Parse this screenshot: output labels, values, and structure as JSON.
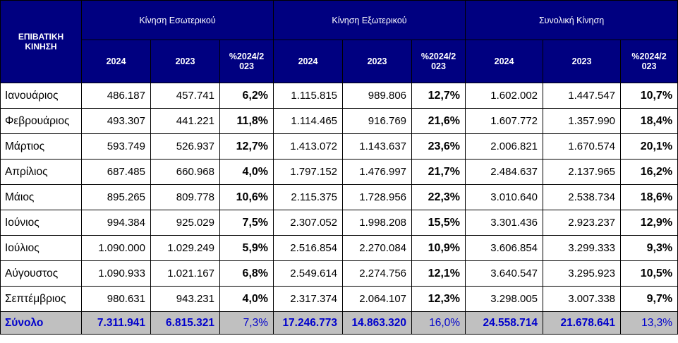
{
  "header": {
    "corner_label": "ΕΠΙΒΑΤΙΚΗ ΚΙΝΗΣΗ",
    "groups": [
      "Κίνηση Εσωτερικού",
      "Κίνηση Εξωτερικού",
      "Συνολική Κίνηση"
    ],
    "subcols": [
      "2024",
      "2023",
      "%2024/2023"
    ]
  },
  "rows": [
    {
      "month": "Ιανουάριος",
      "cells": [
        "486.187",
        "457.741",
        "6,2%",
        "1.115.815",
        "989.806",
        "12,7%",
        "1.602.002",
        "1.447.547",
        "10,7%"
      ]
    },
    {
      "month": "Φεβρουάριος",
      "cells": [
        "493.307",
        "441.221",
        "11,8%",
        "1.114.465",
        "916.769",
        "21,6%",
        "1.607.772",
        "1.357.990",
        "18,4%"
      ]
    },
    {
      "month": "Μάρτιος",
      "cells": [
        "593.749",
        "526.937",
        "12,7%",
        "1.413.072",
        "1.143.637",
        "23,6%",
        "2.006.821",
        "1.670.574",
        "20,1%"
      ]
    },
    {
      "month": "Απρίλιος",
      "cells": [
        "687.485",
        "660.968",
        "4,0%",
        "1.797.152",
        "1.476.997",
        "21,7%",
        "2.484.637",
        "2.137.965",
        "16,2%"
      ]
    },
    {
      "month": "Μάιος",
      "cells": [
        "895.265",
        "809.778",
        "10,6%",
        "2.115.375",
        "1.728.956",
        "22,3%",
        "3.010.640",
        "2.538.734",
        "18,6%"
      ]
    },
    {
      "month": "Ιούνιος",
      "cells": [
        "994.384",
        "925.029",
        "7,5%",
        "2.307.052",
        "1.998.208",
        "15,5%",
        "3.301.436",
        "2.923.237",
        "12,9%"
      ]
    },
    {
      "month": "Ιούλιος",
      "cells": [
        "1.090.000",
        "1.029.249",
        "5,9%",
        "2.516.854",
        "2.270.084",
        "10,9%",
        "3.606.854",
        "3.299.333",
        "9,3%"
      ]
    },
    {
      "month": "Αύγουστος",
      "cells": [
        "1.090.933",
        "1.021.167",
        "6,8%",
        "2.549.614",
        "2.274.756",
        "12,1%",
        "3.640.547",
        "3.295.923",
        "10,5%"
      ]
    },
    {
      "month": "Σεπτέμβριος",
      "cells": [
        "980.631",
        "943.231",
        "4,0%",
        "2.317.374",
        "2.064.107",
        "12,3%",
        "3.298.005",
        "3.007.338",
        "9,7%"
      ]
    }
  ],
  "total": {
    "label": "Σύνολο",
    "cells": [
      "7.311.941",
      "6.815.321",
      "7,3%",
      "17.246.773",
      "14.863.320",
      "16,0%",
      "24.558.714",
      "21.678.641",
      "13,3%"
    ]
  },
  "colors": {
    "header_bg": "#000080",
    "header_text": "#ffffff",
    "total_bg": "#c0c0c0",
    "total_text": "#0000cc"
  }
}
